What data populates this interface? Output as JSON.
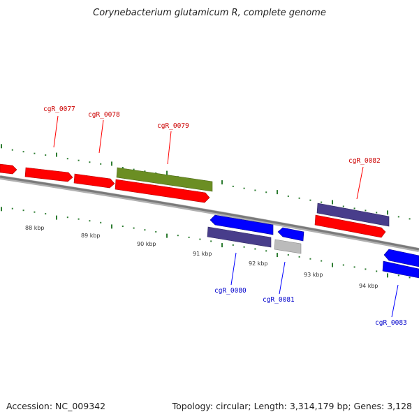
{
  "title": "Corynebacterium glutamicum R, complete genome",
  "accession": "Accession: NC_009342",
  "summary": "Topology: circular; Length: 3,314,179 bp; Genes: 3,128",
  "colors": {
    "cds_forward": "#ff0000",
    "cds_reverse": "#0000ff",
    "highlight_green": "#6b8e23",
    "related": "#483d8b",
    "other": "#bbbbbb",
    "tick": "#2e7d32",
    "backbone": "#808080"
  },
  "kbp_labels": [
    "88 kbp",
    "89 kbp",
    "90 kbp",
    "91 kbp",
    "92 kbp",
    "93 kbp",
    "94 kbp"
  ],
  "gene_labels": [
    {
      "text": "cgR_0077",
      "strand": "forward"
    },
    {
      "text": "cgR_0078",
      "strand": "forward"
    },
    {
      "text": "cgR_0079",
      "strand": "forward"
    },
    {
      "text": "cgR_0082",
      "strand": "forward"
    },
    {
      "text": "cgR_0080",
      "strand": "reverse"
    },
    {
      "text": "cgR_0081",
      "strand": "reverse"
    },
    {
      "text": "cgR_0083",
      "strand": "reverse"
    }
  ]
}
